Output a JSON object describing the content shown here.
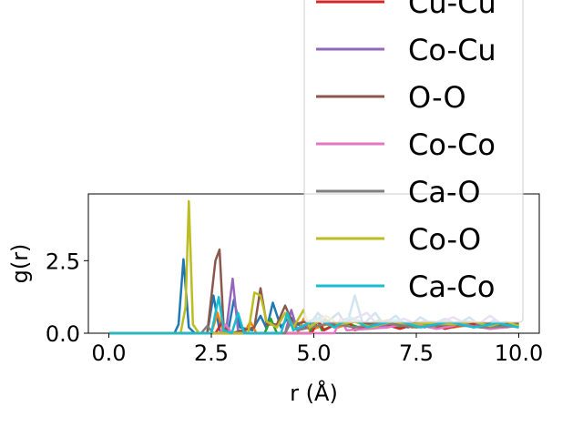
{
  "chart_data": {
    "type": "line",
    "xlabel": "r (Å)",
    "ylabel": "g(r)",
    "xlim": [
      -0.5,
      10.5
    ],
    "ylim": [
      0,
      4.8
    ],
    "xticks": [
      {
        "value": 0.0,
        "label": "0.0"
      },
      {
        "value": 2.5,
        "label": "2.5"
      },
      {
        "value": 5.0,
        "label": "5.0"
      },
      {
        "value": 7.5,
        "label": "7.5"
      },
      {
        "value": 10.0,
        "label": "10.0"
      }
    ],
    "yticks": [
      {
        "value": 0.0,
        "label": "0.0"
      },
      {
        "value": 2.5,
        "label": "2.5"
      }
    ],
    "grid": false,
    "legend_position": "upper-right",
    "series": [
      {
        "name": "",
        "color": "#1f77b4",
        "points": [
          [
            0,
            0
          ],
          [
            1.6,
            0
          ],
          [
            1.7,
            0.3
          ],
          [
            1.82,
            2.55
          ],
          [
            1.95,
            0.2
          ],
          [
            2.1,
            0
          ],
          [
            2.4,
            0
          ],
          [
            2.55,
            1.3
          ],
          [
            2.7,
            0.1
          ],
          [
            2.9,
            0
          ],
          [
            3.05,
            1.15
          ],
          [
            3.2,
            0.2
          ],
          [
            3.5,
            0.1
          ],
          [
            3.7,
            0.6
          ],
          [
            3.85,
            0.15
          ],
          [
            4.0,
            1.05
          ],
          [
            4.2,
            0.2
          ],
          [
            4.4,
            0.6
          ],
          [
            4.6,
            0.3
          ],
          [
            4.85,
            0.2
          ],
          [
            5.1,
            0.7
          ],
          [
            5.3,
            0.35
          ],
          [
            5.6,
            0.7
          ],
          [
            5.8,
            0.25
          ],
          [
            6.0,
            1.3
          ],
          [
            6.2,
            0.3
          ],
          [
            6.5,
            0.7
          ],
          [
            6.7,
            0.3
          ],
          [
            7.0,
            0.6
          ],
          [
            7.3,
            0.2
          ],
          [
            7.6,
            0.55
          ],
          [
            7.9,
            0.3
          ],
          [
            8.2,
            0.5
          ],
          [
            8.5,
            0.3
          ],
          [
            8.8,
            0.55
          ],
          [
            9.1,
            0.2
          ],
          [
            9.4,
            0.45
          ],
          [
            9.7,
            0.25
          ],
          [
            10.0,
            0.35
          ]
        ]
      },
      {
        "name": "",
        "color": "#ff7f0e",
        "points": [
          [
            0,
            0
          ],
          [
            2.5,
            0
          ],
          [
            2.65,
            0.7
          ],
          [
            2.8,
            0
          ],
          [
            3.3,
            0
          ],
          [
            3.45,
            0.4
          ],
          [
            3.6,
            0
          ],
          [
            4.6,
            0
          ],
          [
            4.75,
            0.5
          ],
          [
            4.9,
            0.1
          ],
          [
            5.3,
            0.3
          ],
          [
            5.6,
            0.2
          ],
          [
            6.0,
            0.4
          ],
          [
            6.4,
            0.2
          ],
          [
            6.9,
            0.35
          ],
          [
            7.4,
            0.2
          ],
          [
            7.9,
            0.3
          ],
          [
            8.4,
            0.2
          ],
          [
            8.9,
            0.3
          ],
          [
            9.4,
            0.2
          ],
          [
            10.0,
            0.25
          ]
        ]
      },
      {
        "name": "",
        "color": "#2ca02c",
        "points": [
          [
            0,
            0
          ],
          [
            3.8,
            0
          ],
          [
            3.95,
            0.5
          ],
          [
            4.1,
            0
          ],
          [
            4.9,
            0
          ],
          [
            5.05,
            0.55
          ],
          [
            5.2,
            0.1
          ],
          [
            5.7,
            0.4
          ],
          [
            6.1,
            0.2
          ],
          [
            6.6,
            0.45
          ],
          [
            7.1,
            0.2
          ],
          [
            7.6,
            0.35
          ],
          [
            8.1,
            0.2
          ],
          [
            8.6,
            0.35
          ],
          [
            9.1,
            0.2
          ],
          [
            9.6,
            0.3
          ],
          [
            10.0,
            0.2
          ]
        ]
      },
      {
        "name": "Cu-Cu",
        "color": "#d62728",
        "points": [
          [
            0,
            0
          ],
          [
            2.6,
            0
          ],
          [
            2.75,
            0.35
          ],
          [
            2.9,
            0
          ],
          [
            4.95,
            0
          ],
          [
            5.1,
            0.45
          ],
          [
            5.25,
            0.1
          ],
          [
            5.8,
            0.5
          ],
          [
            6.0,
            0.1
          ],
          [
            6.6,
            0.35
          ],
          [
            7.1,
            0.15
          ],
          [
            7.7,
            0.4
          ],
          [
            8.2,
            0.15
          ],
          [
            8.8,
            0.35
          ],
          [
            9.3,
            0.15
          ],
          [
            10.0,
            0.3
          ]
        ]
      },
      {
        "name": "Co-Cu",
        "color": "#9467bd",
        "points": [
          [
            0,
            0
          ],
          [
            2.85,
            0
          ],
          [
            3.02,
            1.88
          ],
          [
            3.15,
            0.1
          ],
          [
            3.4,
            0
          ],
          [
            4.3,
            0
          ],
          [
            4.45,
            0.8
          ],
          [
            4.6,
            0.1
          ],
          [
            5.2,
            0.6
          ],
          [
            5.5,
            0.2
          ],
          [
            6.3,
            0.7
          ],
          [
            6.6,
            0.2
          ],
          [
            7.2,
            0.5
          ],
          [
            7.7,
            0.2
          ],
          [
            8.4,
            0.55
          ],
          [
            8.9,
            0.2
          ],
          [
            9.3,
            0.6
          ],
          [
            9.7,
            0.2
          ],
          [
            10.0,
            0.3
          ]
        ]
      },
      {
        "name": "O-O",
        "color": "#8c564b",
        "points": [
          [
            0,
            0
          ],
          [
            2.4,
            0
          ],
          [
            2.6,
            2.5
          ],
          [
            2.7,
            2.88
          ],
          [
            2.8,
            0.2
          ],
          [
            3.0,
            0
          ],
          [
            3.55,
            0.2
          ],
          [
            3.7,
            1.55
          ],
          [
            3.85,
            0.3
          ],
          [
            4.1,
            0.3
          ],
          [
            4.3,
            0.95
          ],
          [
            4.5,
            0.3
          ],
          [
            4.8,
            0.4
          ],
          [
            5.2,
            0.5
          ],
          [
            5.5,
            0.3
          ],
          [
            5.9,
            0.5
          ],
          [
            6.4,
            0.3
          ],
          [
            6.8,
            0.45
          ],
          [
            7.2,
            0.3
          ],
          [
            7.7,
            0.4
          ],
          [
            8.3,
            0.35
          ],
          [
            8.8,
            0.4
          ],
          [
            9.3,
            0.3
          ],
          [
            10.0,
            0.35
          ]
        ]
      },
      {
        "name": "Co-Co",
        "color": "#e377c2",
        "points": [
          [
            0,
            0
          ],
          [
            2.7,
            0
          ],
          [
            2.85,
            0.3
          ],
          [
            3.0,
            0
          ],
          [
            5.5,
            0
          ],
          [
            5.65,
            0.5
          ],
          [
            5.8,
            0.1
          ],
          [
            6.8,
            0.2
          ],
          [
            7.3,
            0.35
          ],
          [
            8.0,
            0.15
          ],
          [
            8.6,
            0.3
          ],
          [
            9.3,
            0.15
          ],
          [
            10.0,
            0.25
          ]
        ]
      },
      {
        "name": "Ca-O",
        "color": "#7f7f7f",
        "points": [
          [
            0,
            0
          ],
          [
            2.25,
            0
          ],
          [
            2.4,
            0.25
          ],
          [
            2.55,
            0
          ],
          [
            4.3,
            0
          ],
          [
            4.45,
            0.4
          ],
          [
            4.6,
            0.1
          ],
          [
            5.4,
            0.35
          ],
          [
            6.0,
            0.2
          ],
          [
            6.7,
            0.35
          ],
          [
            7.5,
            0.2
          ],
          [
            8.3,
            0.3
          ],
          [
            9.1,
            0.2
          ],
          [
            10.0,
            0.25
          ]
        ]
      },
      {
        "name": "Co-O",
        "color": "#bcbd22",
        "points": [
          [
            0,
            0
          ],
          [
            1.75,
            0
          ],
          [
            1.87,
            0.9
          ],
          [
            1.95,
            4.55
          ],
          [
            2.05,
            0.3
          ],
          [
            2.2,
            0
          ],
          [
            3.4,
            0
          ],
          [
            3.55,
            1.4
          ],
          [
            3.7,
            1.3
          ],
          [
            3.85,
            0.4
          ],
          [
            4.1,
            0.2
          ],
          [
            4.3,
            0.7
          ],
          [
            4.5,
            0.2
          ],
          [
            4.75,
            0.8
          ],
          [
            4.9,
            0.2
          ],
          [
            5.3,
            0.6
          ],
          [
            5.6,
            0.3
          ],
          [
            6.0,
            0.4
          ],
          [
            6.4,
            0.2
          ],
          [
            6.9,
            0.4
          ],
          [
            7.4,
            0.3
          ],
          [
            7.9,
            0.35
          ],
          [
            8.4,
            0.3
          ],
          [
            8.9,
            0.4
          ],
          [
            9.3,
            0.25
          ],
          [
            9.7,
            0.4
          ],
          [
            10.0,
            0.25
          ]
        ]
      },
      {
        "name": "Ca-Co",
        "color": "#17becf",
        "points": [
          [
            0,
            0
          ],
          [
            2.5,
            0
          ],
          [
            2.68,
            1.25
          ],
          [
            2.8,
            0.1
          ],
          [
            3.0,
            0
          ],
          [
            3.15,
            0.7
          ],
          [
            3.3,
            0
          ],
          [
            3.8,
            0
          ],
          [
            4.2,
            0
          ],
          [
            4.35,
            0.7
          ],
          [
            4.5,
            0.1
          ],
          [
            5.1,
            0.5
          ],
          [
            5.5,
            0.2
          ],
          [
            5.9,
            0.55
          ],
          [
            6.3,
            0.2
          ],
          [
            7.0,
            0.45
          ],
          [
            7.6,
            0.2
          ],
          [
            8.3,
            0.4
          ],
          [
            8.9,
            0.2
          ],
          [
            9.5,
            0.35
          ],
          [
            10.0,
            0.2
          ]
        ]
      }
    ]
  }
}
